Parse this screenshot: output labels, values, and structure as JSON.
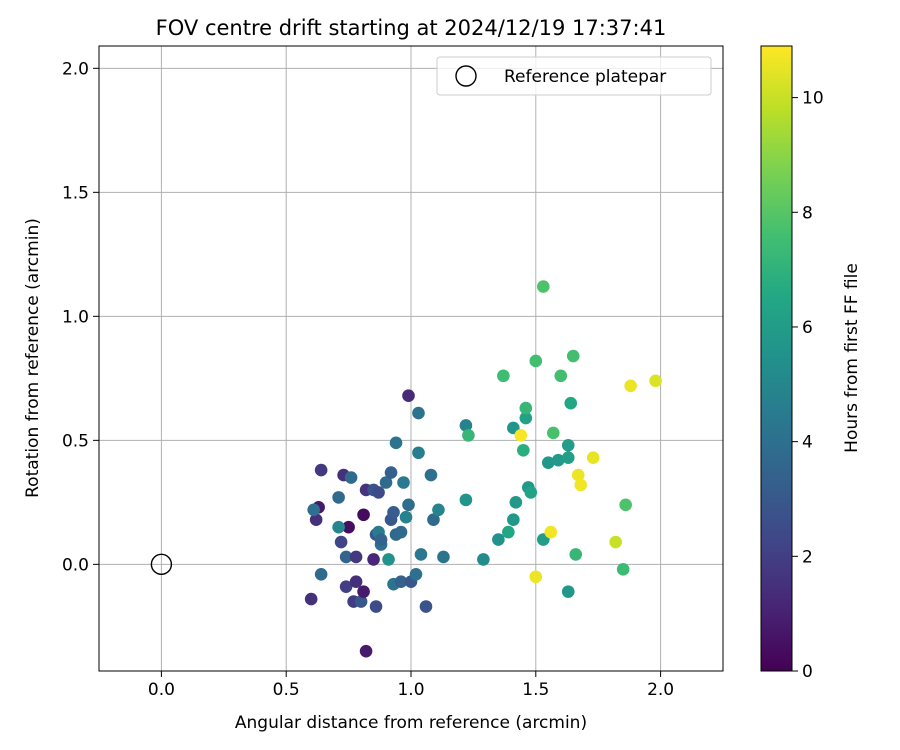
{
  "chart_data": {
    "type": "scatter",
    "title": "FOV centre drift starting at 2024/12/19 17:37:41",
    "xlabel": "Angular distance from reference (arcmin)",
    "ylabel": "Rotation from reference (arcmin)",
    "xlim": [
      -0.25,
      2.25
    ],
    "ylim": [
      -0.43,
      2.09
    ],
    "xticks": [
      "0.0",
      "0.5",
      "1.0",
      "1.5",
      "2.0"
    ],
    "yticks": [
      "0.0",
      "0.5",
      "1.0",
      "1.5",
      "2.0"
    ],
    "grid": true,
    "legend": {
      "placement": "upper-right",
      "entries": [
        "Reference platepar"
      ]
    },
    "reference_point": {
      "x": 0,
      "y": 0
    },
    "colorbar": {
      "label": "Hours from first FF file",
      "min": 0,
      "max": 10.9,
      "ticks": [
        "0",
        "2",
        "4",
        "6",
        "8",
        "10"
      ],
      "colormap": "viridis"
    },
    "points": [
      {
        "x": 0.82,
        "y": -0.35,
        "c": 0.8
      },
      {
        "x": 0.6,
        "y": -0.14,
        "c": 1.5
      },
      {
        "x": 0.64,
        "y": 0.38,
        "c": 1.8
      },
      {
        "x": 0.63,
        "y": 0.23,
        "c": 0.8
      },
      {
        "x": 0.62,
        "y": 0.18,
        "c": 1.5
      },
      {
        "x": 0.61,
        "y": 0.22,
        "c": 4.0
      },
      {
        "x": 0.64,
        "y": -0.04,
        "c": 3.8
      },
      {
        "x": 0.73,
        "y": 0.36,
        "c": 1.5
      },
      {
        "x": 0.75,
        "y": 0.15,
        "c": 0.4
      },
      {
        "x": 0.71,
        "y": 0.15,
        "c": 5.0
      },
      {
        "x": 0.71,
        "y": 0.27,
        "c": 3.8
      },
      {
        "x": 0.72,
        "y": 0.09,
        "c": 2.2
      },
      {
        "x": 0.74,
        "y": -0.09,
        "c": 2.0
      },
      {
        "x": 0.74,
        "y": 0.03,
        "c": 3.5
      },
      {
        "x": 0.77,
        "y": -0.15,
        "c": 1.9
      },
      {
        "x": 0.78,
        "y": -0.07,
        "c": 1.5
      },
      {
        "x": 0.8,
        "y": -0.15,
        "c": 3.0
      },
      {
        "x": 0.78,
        "y": 0.03,
        "c": 1.8
      },
      {
        "x": 0.81,
        "y": -0.11,
        "c": 0.8
      },
      {
        "x": 0.81,
        "y": 0.2,
        "c": 0.3
      },
      {
        "x": 0.82,
        "y": 0.3,
        "c": 1.6
      },
      {
        "x": 0.76,
        "y": 0.35,
        "c": 3.8
      },
      {
        "x": 0.85,
        "y": 0.02,
        "c": 1.2
      },
      {
        "x": 0.86,
        "y": -0.17,
        "c": 2.5
      },
      {
        "x": 0.86,
        "y": 0.12,
        "c": 3.0
      },
      {
        "x": 0.85,
        "y": 0.3,
        "c": 2.8
      },
      {
        "x": 0.87,
        "y": 0.29,
        "c": 2.5
      },
      {
        "x": 0.88,
        "y": 0.08,
        "c": 4.0
      },
      {
        "x": 0.87,
        "y": 0.13,
        "c": 4.5
      },
      {
        "x": 0.88,
        "y": 0.1,
        "c": 3.5
      },
      {
        "x": 0.9,
        "y": 0.33,
        "c": 3.8
      },
      {
        "x": 0.91,
        "y": 0.02,
        "c": 5.5
      },
      {
        "x": 0.92,
        "y": 0.18,
        "c": 3.0
      },
      {
        "x": 0.92,
        "y": 0.37,
        "c": 3.3
      },
      {
        "x": 0.93,
        "y": 0.21,
        "c": 3.2
      },
      {
        "x": 0.93,
        "y": -0.08,
        "c": 4.2
      },
      {
        "x": 0.94,
        "y": 0.12,
        "c": 3.7
      },
      {
        "x": 0.94,
        "y": 0.49,
        "c": 4.2
      },
      {
        "x": 0.96,
        "y": -0.07,
        "c": 3.4
      },
      {
        "x": 0.96,
        "y": 0.13,
        "c": 3.8
      },
      {
        "x": 0.97,
        "y": 0.33,
        "c": 4.4
      },
      {
        "x": 0.98,
        "y": 0.19,
        "c": 4.8
      },
      {
        "x": 0.99,
        "y": 0.68,
        "c": 1.3
      },
      {
        "x": 0.99,
        "y": 0.24,
        "c": 3.9
      },
      {
        "x": 1.0,
        "y": -0.07,
        "c": 3.0
      },
      {
        "x": 1.02,
        "y": -0.04,
        "c": 4.0
      },
      {
        "x": 1.03,
        "y": 0.61,
        "c": 4.2
      },
      {
        "x": 1.03,
        "y": 0.45,
        "c": 4.6
      },
      {
        "x": 1.04,
        "y": 0.04,
        "c": 4.3
      },
      {
        "x": 1.06,
        "y": -0.17,
        "c": 2.8
      },
      {
        "x": 1.08,
        "y": 0.36,
        "c": 4.0
      },
      {
        "x": 1.09,
        "y": 0.18,
        "c": 3.8
      },
      {
        "x": 1.11,
        "y": 0.22,
        "c": 4.9
      },
      {
        "x": 1.13,
        "y": 0.03,
        "c": 4.2
      },
      {
        "x": 1.22,
        "y": 0.56,
        "c": 4.8
      },
      {
        "x": 1.22,
        "y": 0.26,
        "c": 5.6
      },
      {
        "x": 1.23,
        "y": 0.52,
        "c": 7.2
      },
      {
        "x": 1.29,
        "y": 0.02,
        "c": 5.2
      },
      {
        "x": 1.35,
        "y": 0.1,
        "c": 5.5
      },
      {
        "x": 1.37,
        "y": 0.76,
        "c": 7.5
      },
      {
        "x": 1.39,
        "y": 0.13,
        "c": 6.5
      },
      {
        "x": 1.41,
        "y": 0.18,
        "c": 5.8
      },
      {
        "x": 1.41,
        "y": 0.55,
        "c": 5.6
      },
      {
        "x": 1.42,
        "y": 0.25,
        "c": 5.8
      },
      {
        "x": 1.44,
        "y": 0.52,
        "c": 10.8
      },
      {
        "x": 1.45,
        "y": 0.46,
        "c": 6.8
      },
      {
        "x": 1.46,
        "y": 0.59,
        "c": 6.2
      },
      {
        "x": 1.46,
        "y": 0.63,
        "c": 7.2
      },
      {
        "x": 1.47,
        "y": 0.31,
        "c": 5.8
      },
      {
        "x": 1.48,
        "y": 0.29,
        "c": 6.3
      },
      {
        "x": 1.5,
        "y": 0.82,
        "c": 7.6
      },
      {
        "x": 1.5,
        "y": -0.05,
        "c": 10.6
      },
      {
        "x": 1.53,
        "y": 1.12,
        "c": 7.8
      },
      {
        "x": 1.53,
        "y": 0.1,
        "c": 6.0
      },
      {
        "x": 1.55,
        "y": 0.41,
        "c": 5.7
      },
      {
        "x": 1.56,
        "y": 0.13,
        "c": 10.7
      },
      {
        "x": 1.57,
        "y": 0.53,
        "c": 7.7
      },
      {
        "x": 1.59,
        "y": 0.42,
        "c": 5.9
      },
      {
        "x": 1.6,
        "y": 0.76,
        "c": 7.6
      },
      {
        "x": 1.63,
        "y": 0.48,
        "c": 6.0
      },
      {
        "x": 1.63,
        "y": 0.43,
        "c": 6.1
      },
      {
        "x": 1.64,
        "y": 0.65,
        "c": 6.5
      },
      {
        "x": 1.65,
        "y": 0.84,
        "c": 7.6
      },
      {
        "x": 1.63,
        "y": -0.11,
        "c": 5.8
      },
      {
        "x": 1.66,
        "y": 0.04,
        "c": 7.2
      },
      {
        "x": 1.67,
        "y": 0.36,
        "c": 10.6
      },
      {
        "x": 1.68,
        "y": 0.32,
        "c": 10.7
      },
      {
        "x": 1.73,
        "y": 0.43,
        "c": 10.5
      },
      {
        "x": 1.82,
        "y": 0.09,
        "c": 10.0
      },
      {
        "x": 1.85,
        "y": -0.02,
        "c": 7.4
      },
      {
        "x": 1.86,
        "y": 0.24,
        "c": 7.8
      },
      {
        "x": 1.88,
        "y": 0.72,
        "c": 10.6
      },
      {
        "x": 1.98,
        "y": 0.74,
        "c": 10.3
      }
    ]
  }
}
